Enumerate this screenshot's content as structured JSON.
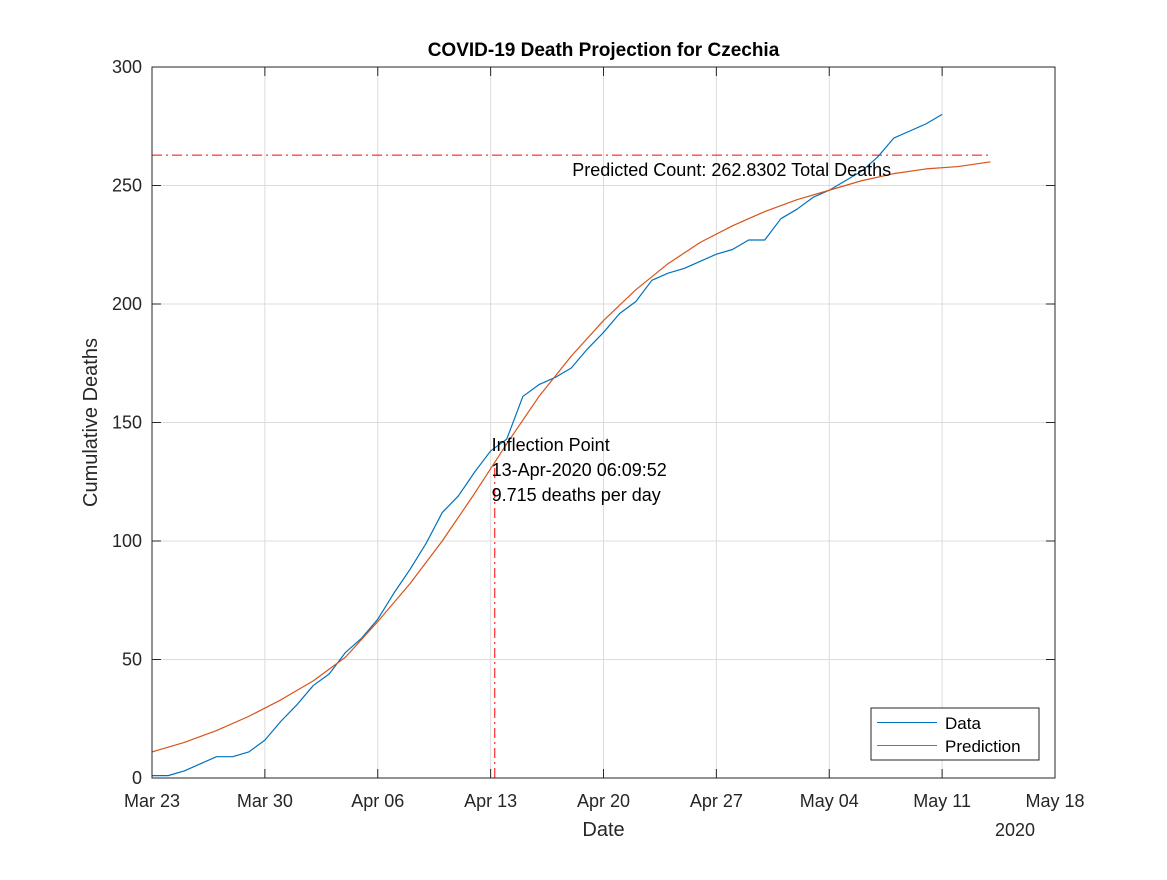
{
  "chart_data": {
    "type": "line",
    "title": "COVID-19 Death Projection for Czechia",
    "xlabel": "Date",
    "ylabel": "Cumulative Deaths",
    "x_axis_year": "2020",
    "xlim": [
      "2020-03-23",
      "2020-05-18"
    ],
    "ylim": [
      0,
      300
    ],
    "grid": true,
    "legend_position": "bottom-right",
    "x_ticks": [
      {
        "date": "2020-03-23",
        "label": "Mar 23"
      },
      {
        "date": "2020-03-30",
        "label": "Mar 30"
      },
      {
        "date": "2020-04-06",
        "label": "Apr 06"
      },
      {
        "date": "2020-04-13",
        "label": "Apr 13"
      },
      {
        "date": "2020-04-20",
        "label": "Apr 20"
      },
      {
        "date": "2020-04-27",
        "label": "Apr 27"
      },
      {
        "date": "2020-05-04",
        "label": "May 04"
      },
      {
        "date": "2020-05-11",
        "label": "May 11"
      },
      {
        "date": "2020-05-18",
        "label": "May 18"
      }
    ],
    "y_ticks": [
      0,
      50,
      100,
      150,
      200,
      250,
      300
    ],
    "series": [
      {
        "name": "Data",
        "color": "#0072BD",
        "points": [
          [
            "2020-03-23",
            1
          ],
          [
            "2020-03-24",
            1
          ],
          [
            "2020-03-25",
            3
          ],
          [
            "2020-03-26",
            6
          ],
          [
            "2020-03-27",
            9
          ],
          [
            "2020-03-28",
            9
          ],
          [
            "2020-03-29",
            11
          ],
          [
            "2020-03-30",
            16
          ],
          [
            "2020-03-31",
            24
          ],
          [
            "2020-04-01",
            31
          ],
          [
            "2020-04-02",
            39
          ],
          [
            "2020-04-03",
            44
          ],
          [
            "2020-04-04",
            53
          ],
          [
            "2020-04-05",
            59
          ],
          [
            "2020-04-06",
            67
          ],
          [
            "2020-04-07",
            78
          ],
          [
            "2020-04-08",
            88
          ],
          [
            "2020-04-09",
            99
          ],
          [
            "2020-04-10",
            112
          ],
          [
            "2020-04-11",
            119
          ],
          [
            "2020-04-12",
            129
          ],
          [
            "2020-04-13",
            138
          ],
          [
            "2020-04-14",
            143
          ],
          [
            "2020-04-15",
            161
          ],
          [
            "2020-04-16",
            166
          ],
          [
            "2020-04-17",
            169
          ],
          [
            "2020-04-18",
            173
          ],
          [
            "2020-04-19",
            181
          ],
          [
            "2020-04-20",
            188
          ],
          [
            "2020-04-21",
            196
          ],
          [
            "2020-04-22",
            201
          ],
          [
            "2020-04-23",
            210
          ],
          [
            "2020-04-24",
            213
          ],
          [
            "2020-04-25",
            215
          ],
          [
            "2020-04-26",
            218
          ],
          [
            "2020-04-27",
            221
          ],
          [
            "2020-04-28",
            223
          ],
          [
            "2020-04-29",
            227
          ],
          [
            "2020-04-30",
            227
          ],
          [
            "2020-05-01",
            236
          ],
          [
            "2020-05-02",
            240
          ],
          [
            "2020-05-03",
            245
          ],
          [
            "2020-05-04",
            248
          ],
          [
            "2020-05-05",
            252
          ],
          [
            "2020-05-06",
            256
          ],
          [
            "2020-05-07",
            262
          ],
          [
            "2020-05-08",
            270
          ],
          [
            "2020-05-09",
            273
          ],
          [
            "2020-05-10",
            276
          ],
          [
            "2020-05-11",
            280
          ]
        ]
      },
      {
        "name": "Prediction",
        "color": "#D95319",
        "points": [
          [
            "2020-03-23",
            11
          ],
          [
            "2020-03-25",
            15
          ],
          [
            "2020-03-27",
            20
          ],
          [
            "2020-03-29",
            26
          ],
          [
            "2020-03-31",
            33
          ],
          [
            "2020-04-02",
            41
          ],
          [
            "2020-04-04",
            51
          ],
          [
            "2020-04-06",
            66
          ],
          [
            "2020-04-08",
            82
          ],
          [
            "2020-04-10",
            100
          ],
          [
            "2020-04-12",
            120
          ],
          [
            "2020-04-14",
            141
          ],
          [
            "2020-04-16",
            161
          ],
          [
            "2020-04-18",
            178
          ],
          [
            "2020-04-20",
            193
          ],
          [
            "2020-04-22",
            206
          ],
          [
            "2020-04-24",
            217
          ],
          [
            "2020-04-26",
            226
          ],
          [
            "2020-04-28",
            233
          ],
          [
            "2020-04-30",
            239
          ],
          [
            "2020-05-02",
            244
          ],
          [
            "2020-05-04",
            248
          ],
          [
            "2020-05-06",
            252
          ],
          [
            "2020-05-08",
            255
          ],
          [
            "2020-05-10",
            257
          ],
          [
            "2020-05-12",
            258
          ],
          [
            "2020-05-14",
            260
          ]
        ]
      }
    ],
    "reference_lines": [
      {
        "orientation": "horizontal",
        "y": 262.8302,
        "x_start": "2020-03-23",
        "x_end": "2020-05-14",
        "color": "#FF0000",
        "style": "dash-dot"
      },
      {
        "orientation": "vertical",
        "x": "2020-04-13T06:09:52",
        "y_start": 0,
        "y_end": 132,
        "color": "#FF0000",
        "style": "dash-dot"
      }
    ],
    "annotations": [
      {
        "id": "predicted",
        "anchor_date": "2020-04-18",
        "anchor_y": 257,
        "lines": [
          "Predicted Count: 262.8302 Total Deaths"
        ]
      },
      {
        "id": "inflection",
        "anchor_date": "2020-04-13",
        "anchor_y": 141,
        "lines": [
          "Inflection Point",
          "13-Apr-2020 06:09:52",
          "9.715 deaths per day"
        ]
      }
    ]
  }
}
